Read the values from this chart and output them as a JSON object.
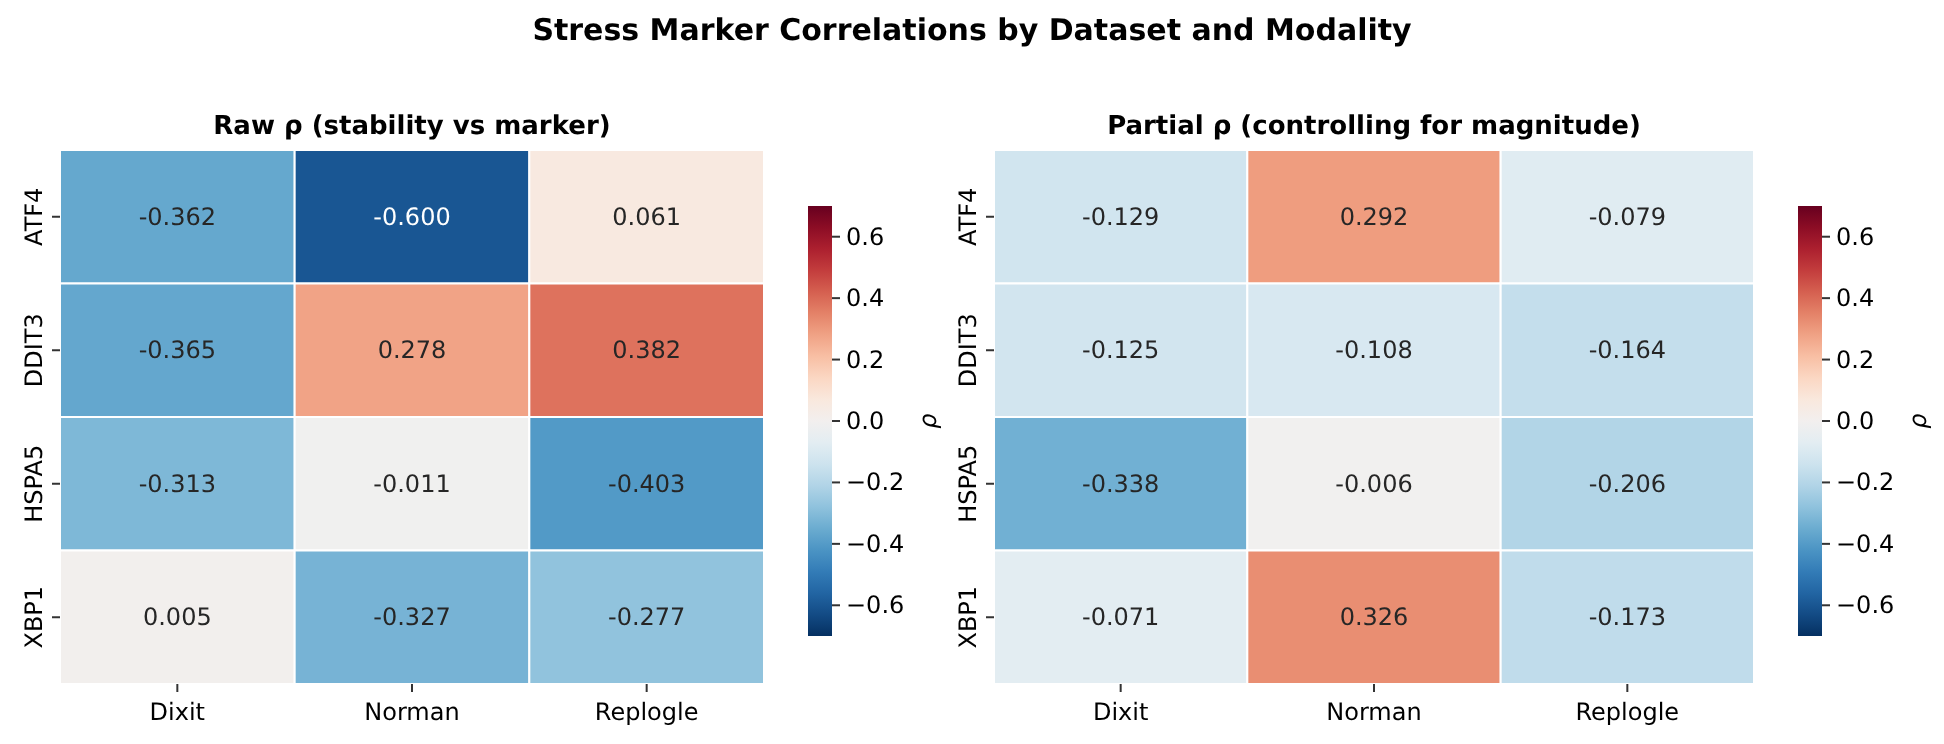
{
  "chart_data": [
    {
      "type": "other",
      "title": "Stress Marker Correlations by Dataset and Modality"
    },
    {
      "type": "heatmap",
      "title": "Raw ρ (stability vs marker)",
      "clabel": "ρ",
      "categories": [
        "Dixit",
        "Norman",
        "Replogle"
      ],
      "y_categories": [
        "ATF4",
        "DDIT3",
        "HSPA5",
        "XBP1"
      ],
      "cells": [
        [
          -0.362,
          -0.6,
          0.061
        ],
        [
          -0.365,
          0.278,
          0.382
        ],
        [
          -0.313,
          -0.011,
          -0.403
        ],
        [
          0.005,
          -0.327,
          -0.277
        ]
      ],
      "cell_labels": [
        [
          "-0.362",
          "-0.600",
          "0.061"
        ],
        [
          "-0.365",
          "0.278",
          "0.382"
        ],
        [
          "-0.313",
          "-0.011",
          "-0.403"
        ],
        [
          "0.005",
          "-0.327",
          "-0.277"
        ]
      ],
      "clim": [
        -0.7,
        0.7
      ],
      "cticks": [
        {
          "value": -0.6,
          "label": "−0.6"
        },
        {
          "value": -0.4,
          "label": "−0.4"
        },
        {
          "value": -0.2,
          "label": "−0.2"
        },
        {
          "value": 0,
          "label": "0.0"
        },
        {
          "value": 0.2,
          "label": "0.2"
        },
        {
          "value": 0.4,
          "label": "0.4"
        },
        {
          "value": 0.6,
          "label": "0.6"
        }
      ]
    },
    {
      "type": "heatmap",
      "title": "Partial ρ (controlling for magnitude)",
      "clabel": "ρ",
      "categories": [
        "Dixit",
        "Norman",
        "Replogle"
      ],
      "y_categories": [
        "ATF4",
        "DDIT3",
        "HSPA5",
        "XBP1"
      ],
      "cells": [
        [
          -0.129,
          0.292,
          -0.079
        ],
        [
          -0.125,
          -0.108,
          -0.164
        ],
        [
          -0.338,
          -0.006,
          -0.206
        ],
        [
          -0.071,
          0.326,
          -0.173
        ]
      ],
      "cell_labels": [
        [
          "-0.129",
          "0.292",
          "-0.079"
        ],
        [
          "-0.125",
          "-0.108",
          "-0.164"
        ],
        [
          "-0.338",
          "-0.006",
          "-0.206"
        ],
        [
          "-0.071",
          "0.326",
          "-0.173"
        ]
      ],
      "clim": [
        -0.7,
        0.7
      ],
      "cticks": [
        {
          "value": -0.6,
          "label": "−0.6"
        },
        {
          "value": -0.4,
          "label": "−0.4"
        },
        {
          "value": -0.2,
          "label": "−0.2"
        },
        {
          "value": 0,
          "label": "0.0"
        },
        {
          "value": 0.2,
          "label": "0.2"
        },
        {
          "value": 0.4,
          "label": "0.4"
        },
        {
          "value": 0.6,
          "label": "0.6"
        }
      ]
    }
  ]
}
